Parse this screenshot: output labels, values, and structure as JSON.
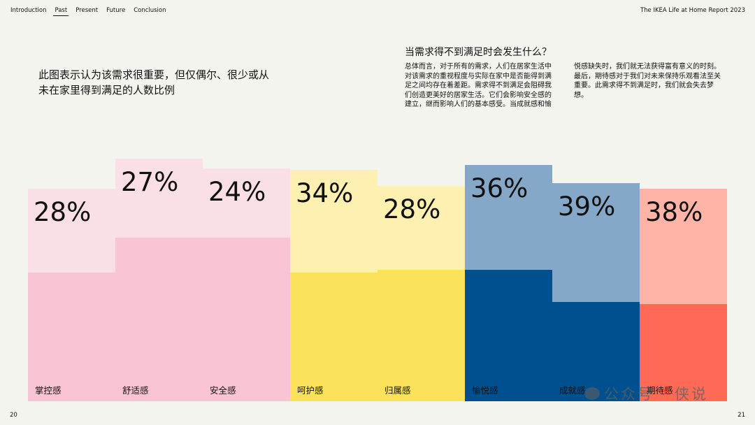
{
  "nav": {
    "items": [
      "Introduction",
      "Past",
      "Present",
      "Future",
      "Conclusion"
    ],
    "active": "Past"
  },
  "report_title": "The IKEA Life at Home Report 2023",
  "left_title": "此图表示认为该需求很重要，但仅偶尔、很少或从未在家里得到满足的人数比例",
  "right_heading": "当需求得不到满足时会发生什么？",
  "right_body": "总体而言，对于所有的需求，人们在居家生活中对该需求的重视程度与实际在家中是否能得到满足之间均存在着差距。需求得不到满足会阻碍我们创造更美好的居家生活。它们会影响安全感的建立，继而影响人们的基本感受。当成就感和愉悦感缺失时，我们就无法获得富有意义的时刻。最后，期待感对于我们对未来保持乐观看法至关重要。此需求得不到满足时，我们就会失去梦想。",
  "page_numbers": {
    "left": "20",
    "right": "21"
  },
  "watermark": "公众号 · 侠说",
  "chart_data": {
    "type": "bar",
    "categories": [
      "掌控感",
      "舒适感",
      "安全感",
      "呵护感",
      "归属感",
      "愉悦感",
      "成就感",
      "期待感"
    ],
    "values": [
      28,
      27,
      24,
      34,
      28,
      36,
      39,
      38
    ],
    "value_labels": [
      "28%",
      "27%",
      "24%",
      "34%",
      "28%",
      "36%",
      "39%",
      "38%"
    ],
    "colors": {
      "light": [
        "#fbdfe7",
        "#fbdfe7",
        "#fbdfe7",
        "#fdf0b0",
        "#fdf0b0",
        "#86a8c8",
        "#86a8c8",
        "#fdb3a6"
      ],
      "dark": [
        "#f9c4d3",
        "#f9c4d3",
        "#f9c4d3",
        "#fce15a",
        "#fce15a",
        "#00508f",
        "#00508f",
        "#ff6a57"
      ]
    },
    "title": "",
    "xlabel": "",
    "ylabel": ""
  }
}
